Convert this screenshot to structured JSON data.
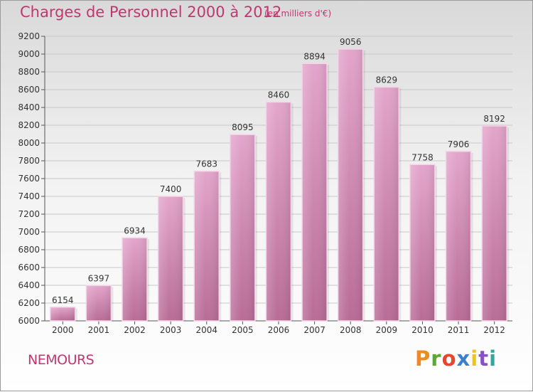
{
  "chart_data": {
    "type": "bar",
    "title": "Charges de Personnel 2000 à 2012",
    "subtitle": "(en milliers d'€)",
    "categories": [
      "2000",
      "2001",
      "2002",
      "2003",
      "2004",
      "2005",
      "2006",
      "2007",
      "2008",
      "2009",
      "2010",
      "2011",
      "2012"
    ],
    "values": [
      6154,
      6397,
      6934,
      7400,
      7683,
      8095,
      8460,
      8894,
      9056,
      8629,
      7758,
      7906,
      8192
    ],
    "ylim": [
      6000,
      9200
    ],
    "yticks": [
      6000,
      6200,
      6400,
      6600,
      6800,
      7000,
      7200,
      7400,
      7600,
      7800,
      8000,
      8200,
      8400,
      8600,
      8800,
      9000,
      9200
    ],
    "grid": true,
    "bar_color": "#d889b4"
  },
  "footer": {
    "city": "NEMOURS",
    "logo": "Proxiti"
  },
  "logo_colors": [
    "#f08a1c",
    "#5aaa2e",
    "#e8452c",
    "#3b7fd0",
    "#f2c21b",
    "#8a4fc1",
    "#2ea8a0"
  ]
}
